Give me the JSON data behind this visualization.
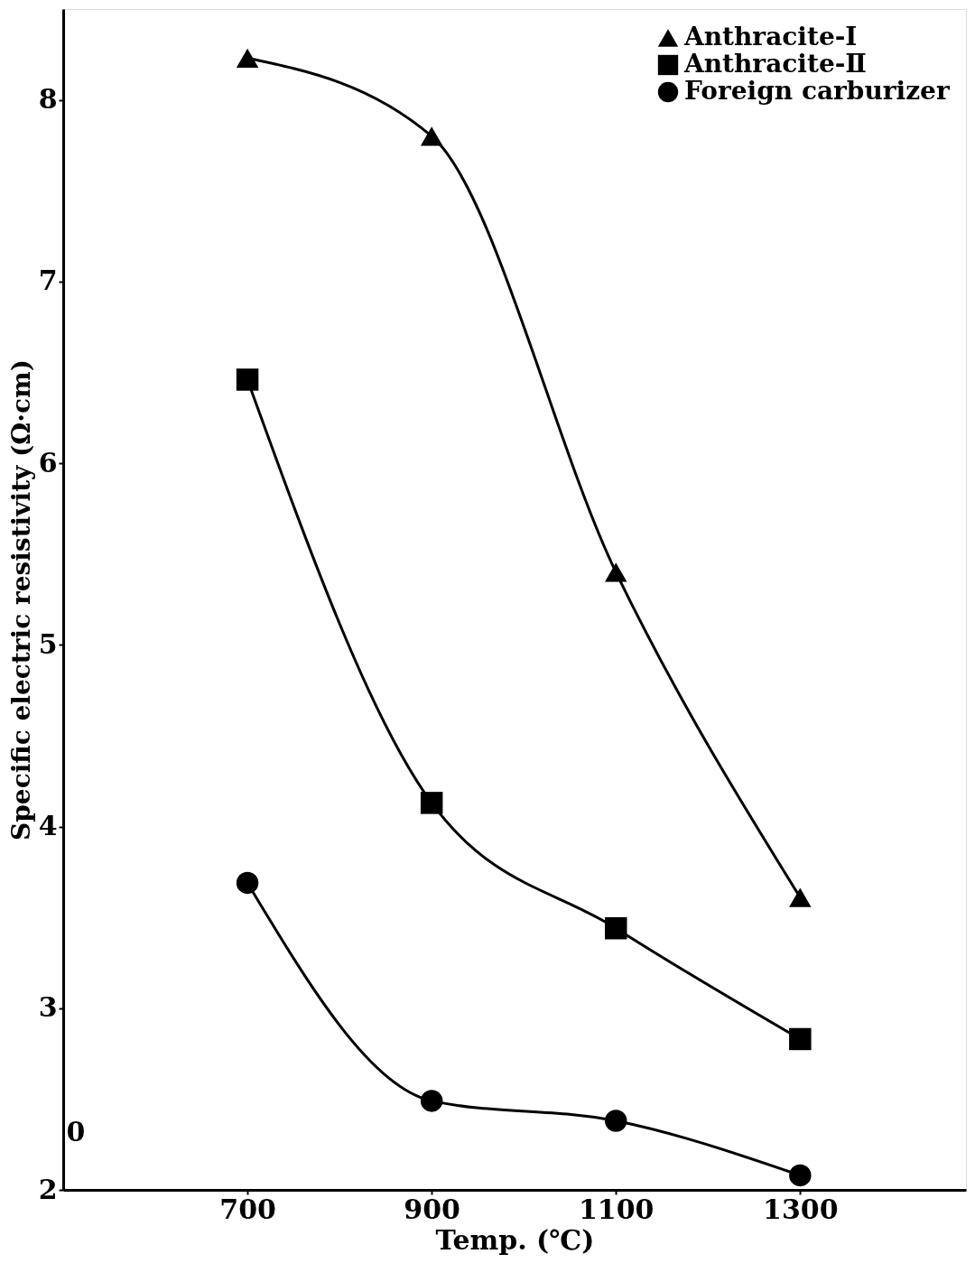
{
  "chart_data": {
    "type": "line",
    "xlabel": "Temp. (℃)",
    "ylabel": "Specific electric resistivity (Ω·cm)",
    "x": [
      700,
      900,
      1100,
      1300
    ],
    "xlim": [
      500,
      1480
    ],
    "xticks": [
      700,
      900,
      1100,
      1300
    ],
    "annotations": [
      "0"
    ],
    "ylim": [
      2,
      8.5
    ],
    "yticks": [
      2,
      3,
      4,
      5,
      6,
      7,
      8
    ],
    "grid": false,
    "legend": "top right",
    "line_style": "solid",
    "series": [
      {
        "name": "Anthracite-Ⅰ",
        "color": "#000000",
        "marker": "triangle",
        "values": [
          8.23,
          7.8,
          5.4,
          3.61
        ]
      },
      {
        "name": "Anthracite-Ⅱ",
        "color": "#000000",
        "marker": "square",
        "values": [
          6.46,
          4.13,
          3.44,
          2.83
        ]
      },
      {
        "name": "Foreign carburizer",
        "color": "#000000",
        "marker": "circle",
        "values": [
          3.69,
          2.49,
          2.38,
          2.08
        ]
      }
    ]
  }
}
